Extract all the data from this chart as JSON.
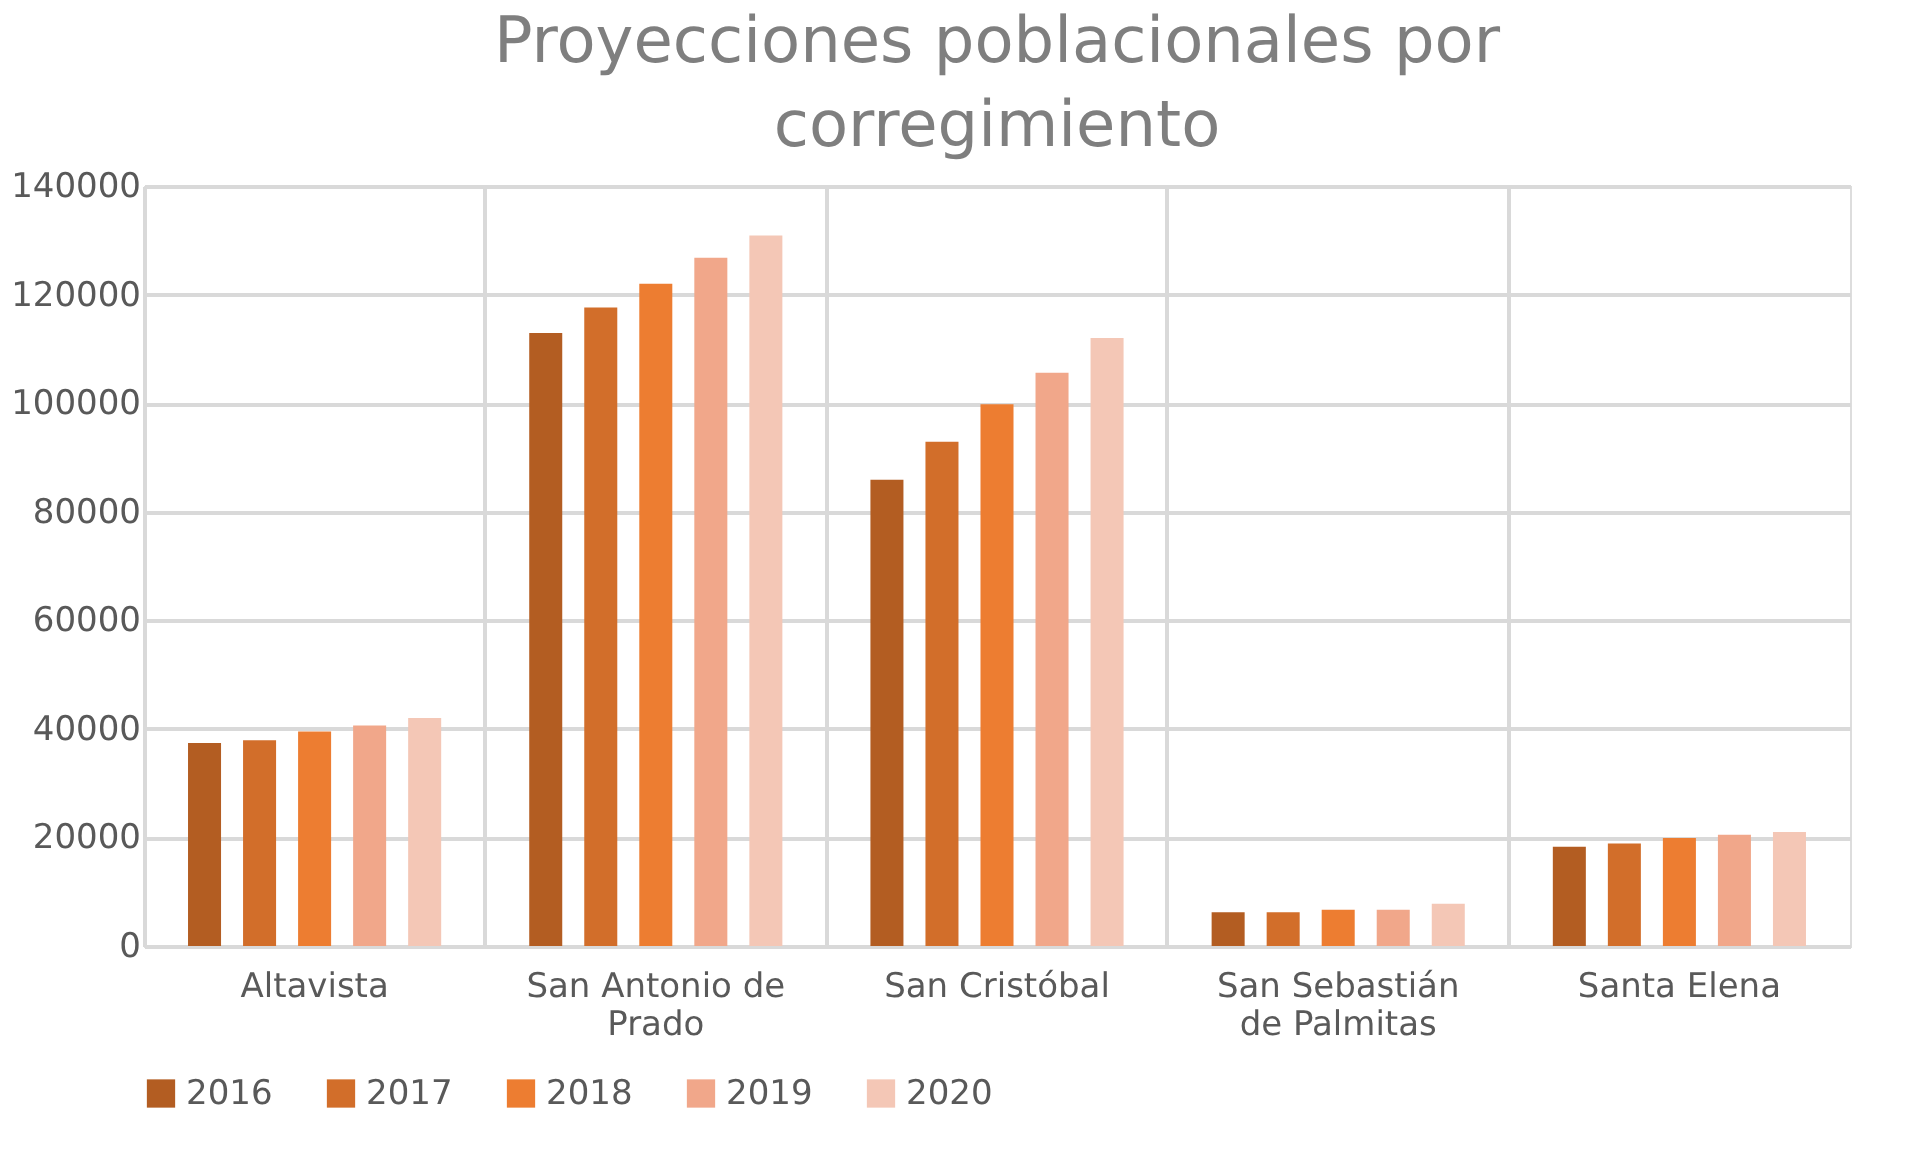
{
  "chart_data": {
    "type": "bar",
    "title": "Proyecciones poblacionales por corregimiento",
    "categories": [
      "Altavista",
      "San Antonio de Prado",
      "San Cristóbal",
      "San Sebastián de Palmitas",
      "Santa Elena"
    ],
    "series": [
      {
        "name": "2016",
        "color": "#b35d22",
        "values": [
          37400,
          112900,
          85900,
          6200,
          18300
        ]
      },
      {
        "name": "2017",
        "color": "#d26e2a",
        "values": [
          37900,
          117600,
          92900,
          6200,
          18900
        ]
      },
      {
        "name": "2018",
        "color": "#ed7d31",
        "values": [
          39500,
          122000,
          99800,
          6700,
          19900
        ]
      },
      {
        "name": "2019",
        "color": "#f1a78a",
        "values": [
          40600,
          126800,
          105600,
          6700,
          20500
        ]
      },
      {
        "name": "2020",
        "color": "#f4c7b6",
        "values": [
          42000,
          130900,
          112000,
          7800,
          21000
        ]
      }
    ],
    "ylim": [
      0,
      140000
    ],
    "yticks": [
      0,
      20000,
      40000,
      60000,
      80000,
      100000,
      120000,
      140000
    ],
    "grid": true,
    "legend": "bottom"
  }
}
